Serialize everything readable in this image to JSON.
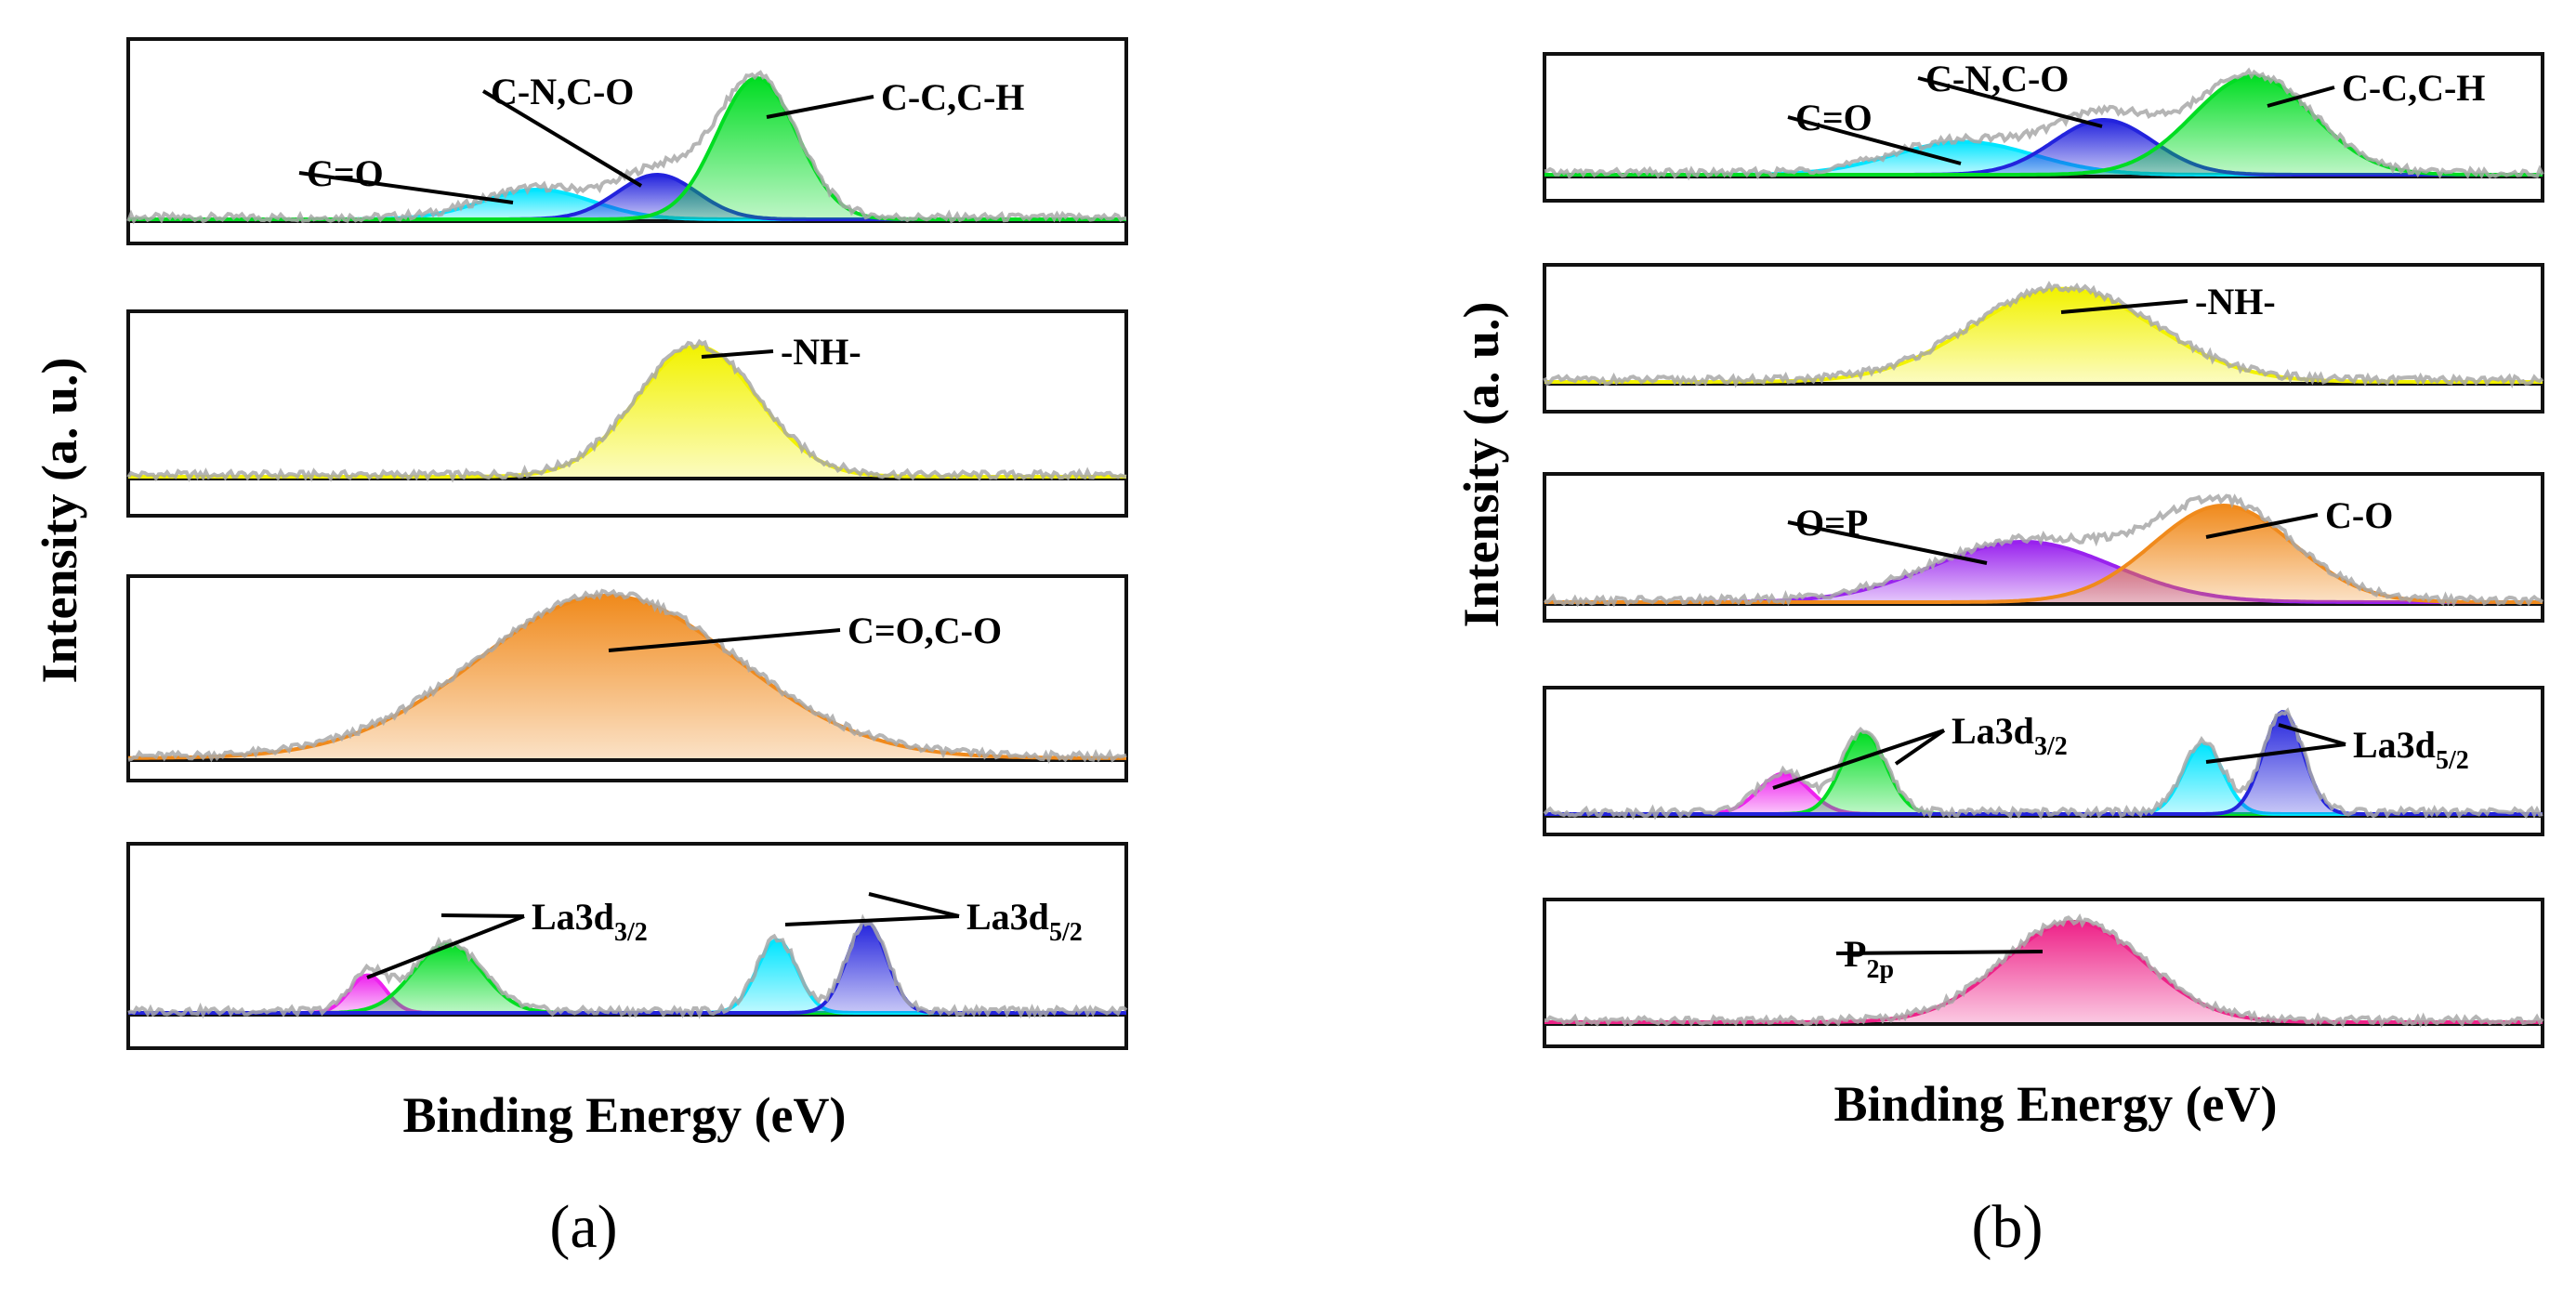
{
  "chart_data": [
    {
      "type": "area",
      "panel_label": "(a)",
      "xlabel": "Binding Energy (eV)",
      "ylabel": "Intensity (a. u.)",
      "subplots": [
        {
          "peaks": [
            {
              "label": "C=O",
              "color": "#00e5ff",
              "center": 0.41,
              "width": 0.055,
              "height": 0.2
            },
            {
              "label": "C-N,C-O",
              "color": "#2323dd",
              "center": 0.53,
              "width": 0.04,
              "height": 0.3
            },
            {
              "label": "C-C,C-H",
              "color": "#00dd22",
              "center": 0.63,
              "width": 0.04,
              "height": 0.95
            }
          ]
        },
        {
          "peaks": [
            {
              "label": "-NH-",
              "color": "#f2f200",
              "center": 0.57,
              "width": 0.06,
              "height": 0.85
            }
          ]
        },
        {
          "peaks": [
            {
              "label": "C=O,C-O",
              "color": "#f08a1c",
              "center": 0.48,
              "width": 0.13,
              "height": 1.0
            }
          ]
        },
        {
          "peaks": [
            {
              "label": "La3d",
              "sub": "3/2",
              "color": "#ee22ee",
              "center": 0.24,
              "width": 0.018,
              "height": 0.3
            },
            {
              "label": "",
              "sub": "",
              "color": "#00dd22",
              "center": 0.32,
              "width": 0.034,
              "height": 0.55
            },
            {
              "label": "",
              "sub": "",
              "color": "#00e5ff",
              "center": 0.65,
              "width": 0.02,
              "height": 0.58
            },
            {
              "label": "La3d",
              "sub": "5/2",
              "color": "#2323dd",
              "center": 0.74,
              "width": 0.02,
              "height": 0.72
            }
          ]
        }
      ]
    },
    {
      "type": "area",
      "panel_label": "(b)",
      "xlabel": "Binding Energy (eV)",
      "ylabel": "Intensity (a. u.)",
      "subplots": [
        {
          "peaks": [
            {
              "label": "C=O",
              "color": "#00e5ff",
              "center": 0.42,
              "width": 0.07,
              "height": 0.3
            },
            {
              "label": "C-N,C-O",
              "color": "#2323dd",
              "center": 0.56,
              "width": 0.05,
              "height": 0.5
            },
            {
              "label": "C-C,C-H",
              "color": "#00dd22",
              "center": 0.71,
              "width": 0.06,
              "height": 0.9
            }
          ]
        },
        {
          "peaks": [
            {
              "label": "-NH-",
              "color": "#f2f200",
              "center": 0.52,
              "width": 0.09,
              "height": 0.85
            }
          ]
        },
        {
          "peaks": [
            {
              "label": "O=P",
              "color": "#9922ee",
              "center": 0.48,
              "width": 0.09,
              "height": 0.5
            },
            {
              "label": "C-O",
              "color": "#f08a1c",
              "center": 0.68,
              "width": 0.07,
              "height": 0.8
            }
          ]
        },
        {
          "peaks": [
            {
              "label": "",
              "sub": "",
              "color": "#ee22ee",
              "center": 0.24,
              "width": 0.025,
              "height": 0.35
            },
            {
              "label": "La3d",
              "sub": "3/2",
              "color": "#00dd22",
              "center": 0.32,
              "width": 0.022,
              "height": 0.7
            },
            {
              "label": "",
              "sub": "",
              "color": "#00e5ff",
              "center": 0.66,
              "width": 0.02,
              "height": 0.6
            },
            {
              "label": "La3d",
              "sub": "5/2",
              "color": "#2323dd",
              "center": 0.74,
              "width": 0.02,
              "height": 0.88
            }
          ]
        },
        {
          "peaks": [
            {
              "label": "P",
              "sub": "2p",
              "color": "#ee2288",
              "center": 0.53,
              "width": 0.07,
              "height": 0.9
            }
          ]
        }
      ]
    }
  ]
}
